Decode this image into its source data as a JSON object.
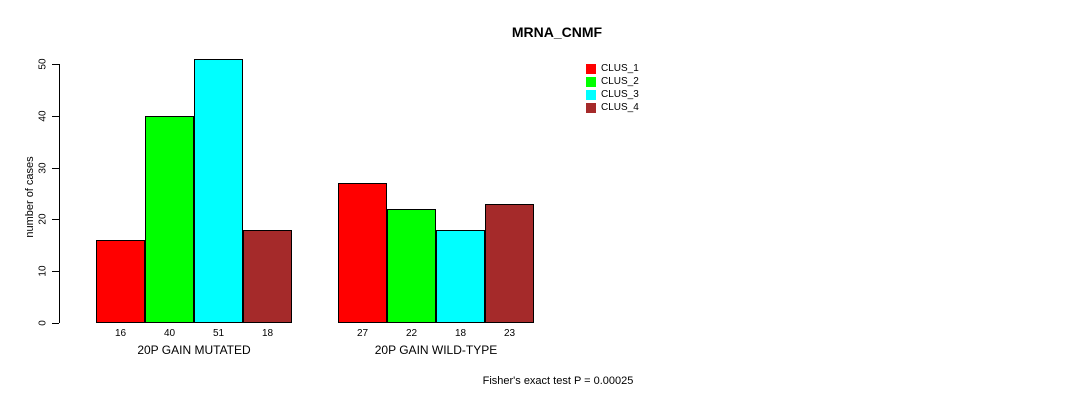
{
  "title": "MRNA_CNMF",
  "footer": "Fisher's exact test P = 0.00025",
  "chart_data": {
    "type": "bar",
    "title": "MRNA_CNMF",
    "xlabel": "",
    "ylabel": "number of cases",
    "categories": [
      "20P GAIN MUTATED",
      "20P GAIN WILD-TYPE"
    ],
    "series": [
      {
        "name": "CLUS_1",
        "color": "#FF0000",
        "values": [
          16,
          27
        ]
      },
      {
        "name": "CLUS_2",
        "color": "#00FF00",
        "values": [
          40,
          22
        ]
      },
      {
        "name": "CLUS_3",
        "color": "#00FFFF",
        "values": [
          51,
          18
        ]
      },
      {
        "name": "CLUS_4",
        "color": "#A52A2A",
        "values": [
          18,
          23
        ]
      }
    ],
    "yticks": [
      0,
      10,
      20,
      30,
      40,
      50
    ],
    "ylim": [
      0,
      51
    ],
    "grid": false,
    "bar_value_labels": [
      [
        16,
        40,
        51,
        18
      ],
      [
        27,
        22,
        18,
        23
      ]
    ],
    "legend_position": "top-right",
    "annotation": "Fisher's exact test P = 0.00025"
  }
}
